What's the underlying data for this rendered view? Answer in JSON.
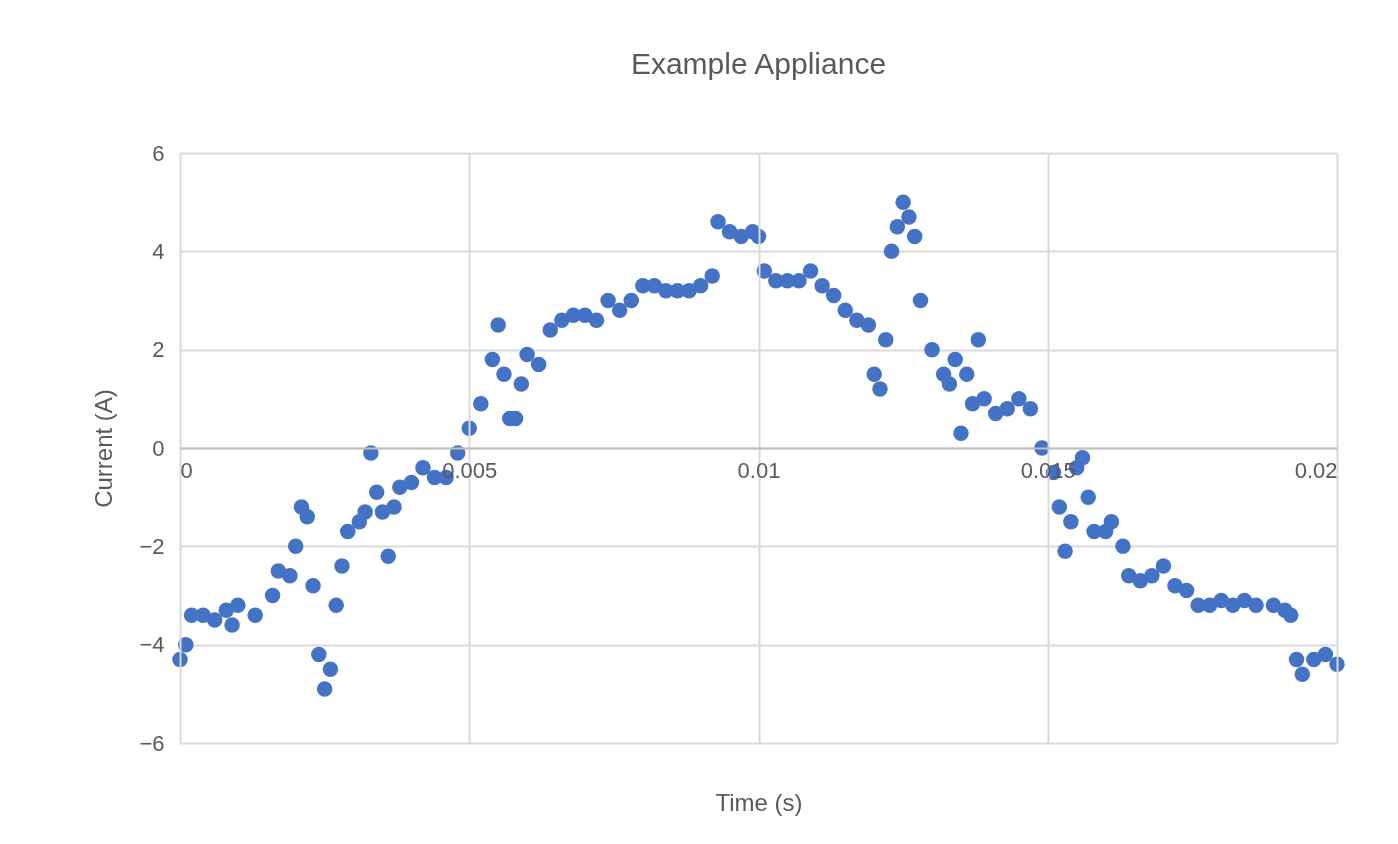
{
  "chart_data": {
    "type": "scatter",
    "title": "Example Appliance",
    "xlabel": "Time (s)",
    "ylabel": "Current (A)",
    "xlim": [
      0,
      0.02
    ],
    "xticks": [
      0,
      0.005,
      0.01,
      0.015,
      0.02
    ],
    "ylim": [
      -6,
      6
    ],
    "yticks": [
      -6,
      -4,
      -2,
      0,
      2,
      4,
      6
    ],
    "grid": true,
    "marker": "circle",
    "series": [
      {
        "color": "#4472c4",
        "x": [
          0,
          0.0001,
          0.0002,
          0.0004,
          0.0006,
          0.0008,
          0.0009,
          0.001,
          0.0013,
          0.0016,
          0.0017,
          0.0019,
          0.002,
          0.0021,
          0.0022,
          0.0023,
          0.0024,
          0.0025,
          0.0026,
          0.0027,
          0.0028,
          0.0029,
          0.0031,
          0.0032,
          0.0033,
          0.0034,
          0.0035,
          0.0036,
          0.0037,
          0.0038,
          0.004,
          0.0042,
          0.0044,
          0.0046,
          0.0048,
          0.005,
          0.0052,
          0.0054,
          0.0055,
          0.0056,
          0.0057,
          0.0058,
          0.0059,
          0.006,
          0.0062,
          0.0064,
          0.0066,
          0.0068,
          0.007,
          0.0072,
          0.0074,
          0.0076,
          0.0078,
          0.008,
          0.0082,
          0.0084,
          0.0086,
          0.0088,
          0.009,
          0.0092,
          0.0093,
          0.0095,
          0.0097,
          0.0099,
          0.01,
          0.0101,
          0.0103,
          0.0105,
          0.0107,
          0.0109,
          0.0111,
          0.0113,
          0.0115,
          0.0117,
          0.0119,
          0.012,
          0.0121,
          0.0122,
          0.0123,
          0.0124,
          0.0125,
          0.0126,
          0.0127,
          0.0128,
          0.013,
          0.0132,
          0.0133,
          0.0134,
          0.0135,
          0.0136,
          0.0137,
          0.0138,
          0.0139,
          0.0141,
          0.0143,
          0.0145,
          0.0147,
          0.0149,
          0.0151,
          0.0152,
          0.0153,
          0.0154,
          0.0155,
          0.0156,
          0.0157,
          0.0158,
          0.016,
          0.0161,
          0.0163,
          0.0164,
          0.0166,
          0.0168,
          0.017,
          0.0172,
          0.0174,
          0.0176,
          0.0178,
          0.018,
          0.0182,
          0.0184,
          0.0186,
          0.0189,
          0.0191,
          0.0192,
          0.0193,
          0.0194,
          0.0196,
          0.0198,
          0.02
        ],
        "values": [
          -4.3,
          -4.0,
          -3.4,
          -3.4,
          -3.5,
          -3.3,
          -3.6,
          -3.2,
          -3.4,
          -3.0,
          -2.5,
          -2.6,
          -2.0,
          -1.2,
          -1.4,
          -2.8,
          -4.2,
          -4.9,
          -4.5,
          -3.2,
          -2.4,
          -1.7,
          -1.5,
          -1.3,
          -0.1,
          -0.9,
          -1.3,
          -2.2,
          -1.2,
          -0.8,
          -0.7,
          -0.4,
          -0.6,
          -0.6,
          -0.1,
          0.4,
          0.9,
          1.8,
          2.5,
          1.5,
          0.6,
          0.6,
          1.3,
          1.9,
          1.7,
          2.4,
          2.6,
          2.7,
          2.7,
          2.6,
          3.0,
          2.8,
          3.0,
          3.3,
          3.3,
          3.2,
          3.2,
          3.2,
          3.3,
          3.5,
          4.6,
          4.4,
          4.3,
          4.4,
          4.3,
          3.6,
          3.4,
          3.4,
          3.4,
          3.6,
          3.3,
          3.1,
          2.8,
          2.6,
          2.5,
          1.5,
          1.2,
          2.2,
          4.0,
          4.5,
          5.0,
          4.7,
          4.3,
          3.0,
          2.0,
          1.5,
          1.3,
          1.8,
          0.3,
          1.5,
          0.9,
          2.2,
          1.0,
          0.7,
          0.8,
          1.0,
          0.8,
          0.0,
          -0.5,
          -1.2,
          -2.1,
          -1.5,
          -0.4,
          -0.2,
          -1.0,
          -1.7,
          -1.7,
          -1.5,
          -2.0,
          -2.6,
          -2.7,
          -2.6,
          -2.4,
          -2.8,
          -2.9,
          -3.2,
          -3.2,
          -3.1,
          -3.2,
          -3.1,
          -3.2,
          -3.2,
          -3.3,
          -3.4,
          -4.3,
          -4.6,
          -4.3,
          -4.2,
          -4.4
        ]
      }
    ]
  }
}
